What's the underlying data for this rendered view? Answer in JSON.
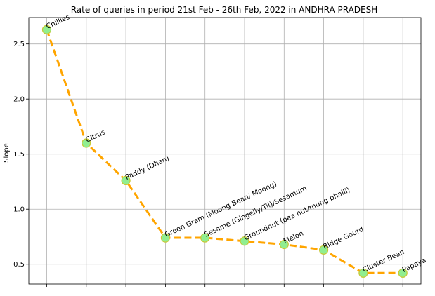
{
  "chart_data": {
    "type": "line",
    "title": "Rate of queries in period 21st Feb - 26th Feb, 2022 in ANDHRA PRADESH",
    "xlabel": "",
    "ylabel": "Slope",
    "ylim": [
      0.32,
      2.74
    ],
    "yticks": [
      "0.5",
      "1.0",
      "1.5",
      "2.0",
      "2.5"
    ],
    "grid": true,
    "categories": [
      "Chillies",
      "Citrus",
      "Paddy (Dhan)",
      "Green Gram (Moong Bean/ Moong)",
      "Sesame (Gingelly/Til)/Sesamum",
      "Groundnut (pea nut/mung phalli)",
      "Melon",
      "Ridge Gourd",
      "Cluster Bean",
      "Papaya"
    ],
    "values": [
      2.63,
      1.6,
      1.26,
      0.74,
      0.74,
      0.71,
      0.68,
      0.63,
      0.42,
      0.42
    ],
    "line_color": "#ffa500",
    "marker_fill": "#90ee90",
    "marker_edge": "#c8c832"
  }
}
